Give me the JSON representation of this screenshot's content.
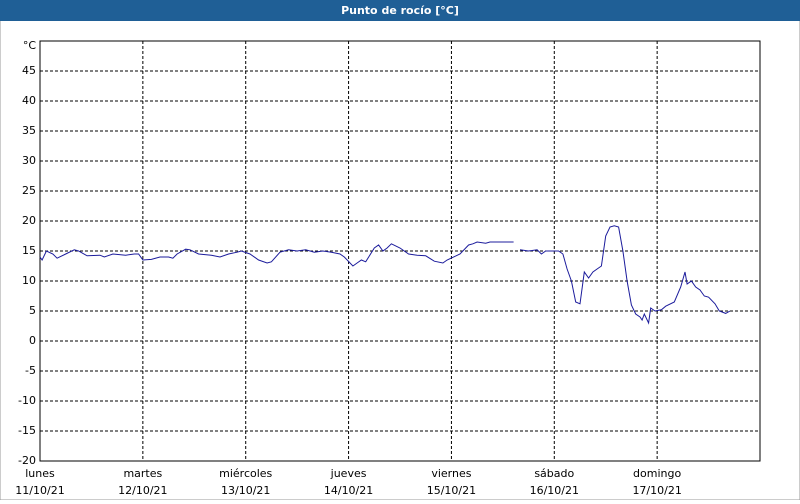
{
  "chart_data": {
    "type": "line",
    "title": "Punto de rocío [°C]",
    "unit": "°C",
    "xlim": [
      0,
      168
    ],
    "ylim": [
      -20,
      50
    ],
    "yticks": [
      -20,
      -15,
      -10,
      -5,
      0,
      5,
      10,
      15,
      20,
      25,
      30,
      35,
      40,
      45
    ],
    "xticks": [
      {
        "value": 0,
        "label": "lunes",
        "date": "11/10/21"
      },
      {
        "value": 24,
        "label": "martes",
        "date": "12/10/21"
      },
      {
        "value": 48,
        "label": "miércoles",
        "date": "13/10/21"
      },
      {
        "value": 72,
        "label": "jueves",
        "date": "14/10/21"
      },
      {
        "value": 96,
        "label": "viernes",
        "date": "15/10/21"
      },
      {
        "value": 120,
        "label": "sábado",
        "date": "16/10/21"
      },
      {
        "value": 144,
        "label": "domingo",
        "date": "17/10/21"
      }
    ],
    "grid": true,
    "color": "#1c1c9c",
    "x": [
      0,
      0.5,
      1.5,
      3,
      4,
      6,
      8,
      9,
      11,
      14,
      15,
      17,
      20,
      22,
      23,
      24,
      26,
      28,
      30,
      31,
      32,
      34,
      35,
      37,
      40,
      42,
      44,
      46,
      47,
      49,
      51,
      53,
      54,
      56,
      58,
      60,
      62,
      64,
      66,
      68,
      70,
      71,
      73,
      74,
      75,
      76,
      78,
      79,
      80,
      81,
      82,
      84,
      86,
      88,
      90,
      92,
      94,
      95,
      98,
      100,
      101,
      102,
      104,
      105,
      107,
      110.5,
      111,
      112,
      114,
      116,
      117,
      118,
      120,
      121,
      122,
      123,
      124,
      125,
      126,
      127,
      128,
      129,
      130,
      131,
      132,
      133,
      134,
      135,
      136,
      137,
      138,
      139,
      140,
      140.5,
      141,
      142,
      142.5,
      143.5,
      145,
      146,
      148,
      149.5,
      150.5,
      151,
      152,
      153,
      154,
      155,
      156,
      157.5,
      158.5,
      160,
      161
    ],
    "values": [
      14,
      13.5,
      15,
      14.5,
      13.8,
      14.5,
      15.2,
      15,
      14.2,
      14.3,
      14,
      14.5,
      14.3,
      14.5,
      14.5,
      13.5,
      13.6,
      14,
      14,
      13.8,
      14.5,
      15.3,
      15.2,
      14.5,
      14.3,
      14,
      14.5,
      14.8,
      15,
      14.5,
      13.5,
      13,
      13.2,
      14.8,
      15.2,
      15,
      15.2,
      14.8,
      15,
      14.8,
      14.5,
      14,
      12.5,
      13,
      13.5,
      13.2,
      15.5,
      16,
      15,
      15.5,
      16.2,
      15.5,
      14.5,
      14.3,
      14.2,
      13.3,
      13,
      13.5,
      14.5,
      16,
      16.2,
      16.5,
      16.3,
      16.5,
      16.5,
      16.5,
      null,
      15.2,
      15,
      15.2,
      14.5,
      15,
      15,
      15,
      14.5,
      12,
      10,
      6.5,
      6.2,
      11.5,
      10.5,
      11.5,
      12,
      12.5,
      17.5,
      19,
      19.2,
      19,
      15,
      10,
      6,
      4.5,
      4,
      3.5,
      4.5,
      3,
      5.5,
      5,
      5.2,
      5.8,
      6.5,
      9,
      11.5,
      9.5,
      10,
      9,
      8.5,
      7.5,
      7.3,
      6.2,
      5,
      4.6,
      5
    ]
  }
}
